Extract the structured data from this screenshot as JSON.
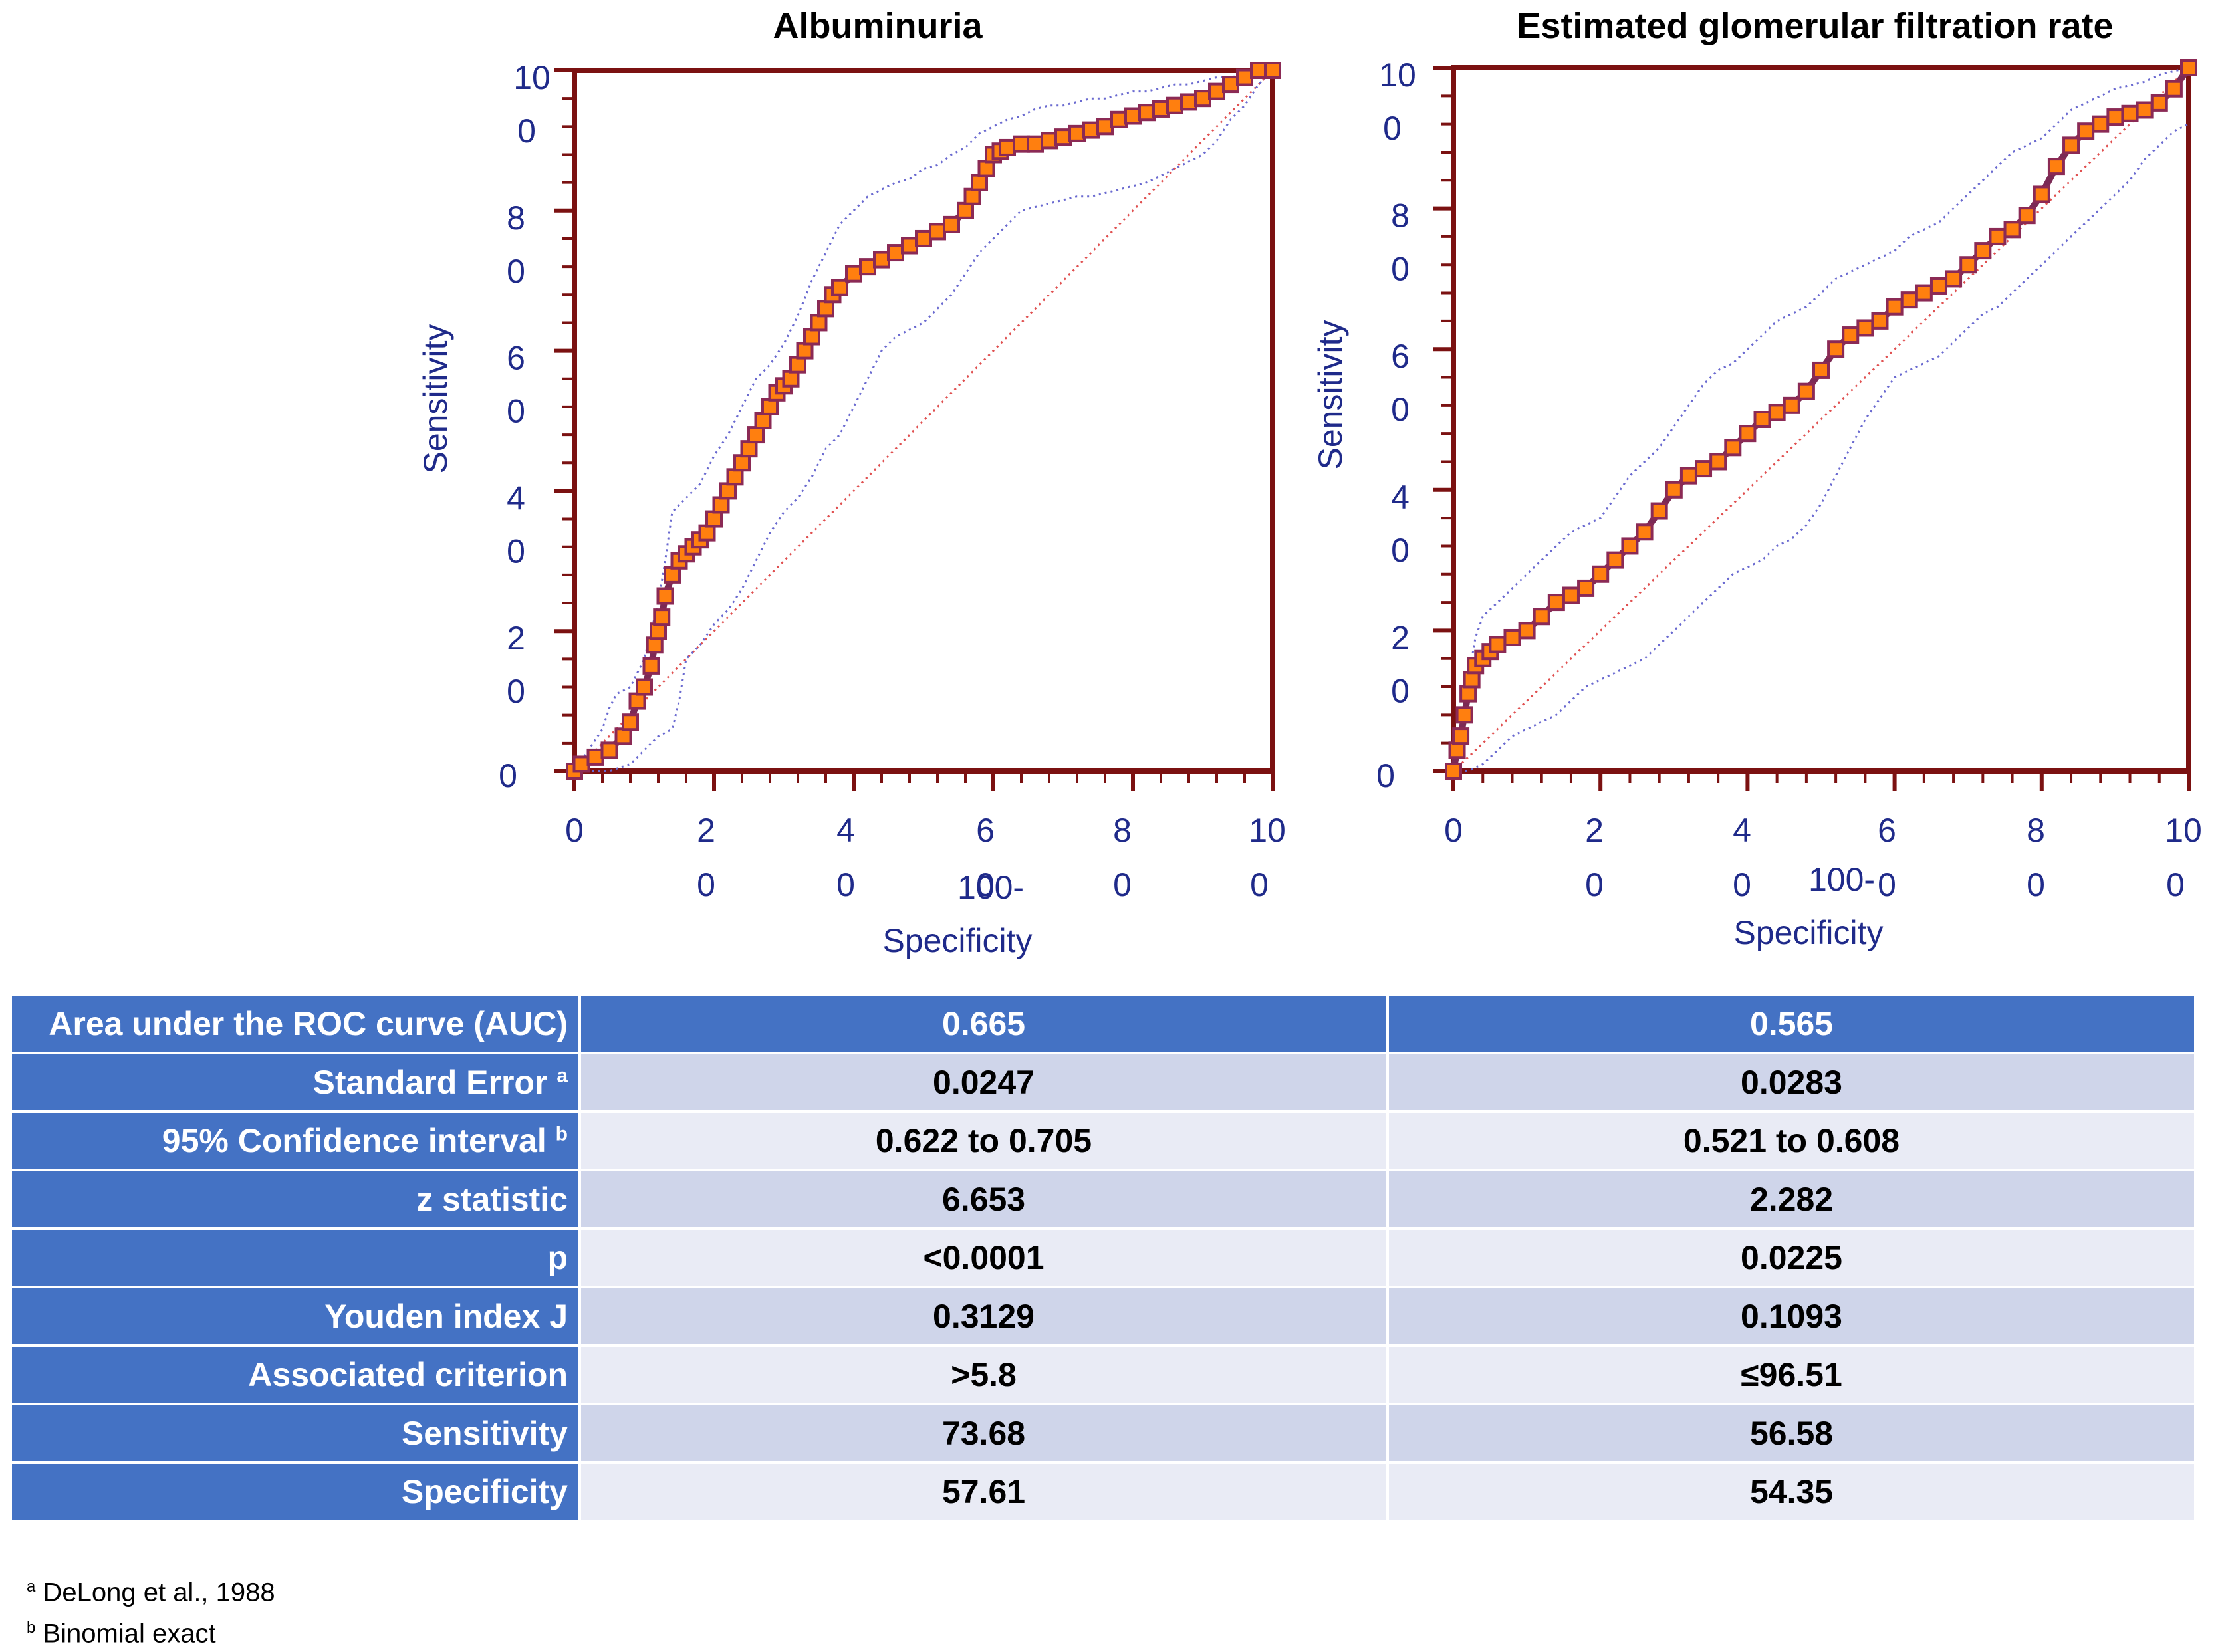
{
  "chart_data": [
    {
      "type": "line",
      "title": "Albuminuria",
      "xlabel": "100-\nSpecificity",
      "ylabel": "Sensitivity",
      "xlim": [
        0,
        100
      ],
      "ylim": [
        0,
        100
      ],
      "xticks": [
        "0",
        "20",
        "40",
        "60",
        "80",
        "100"
      ],
      "yticks": [
        "0",
        "20",
        "40",
        "60",
        "80",
        "100"
      ],
      "series": [
        {
          "x": [
            0,
            1,
            3,
            5,
            7,
            8,
            9,
            10,
            11,
            11.5,
            12,
            12.5,
            13,
            14,
            15,
            16,
            17,
            18,
            19,
            20,
            21,
            22,
            23,
            24,
            25,
            26,
            27,
            28,
            29,
            30,
            31,
            32,
            33,
            34,
            35,
            36,
            37,
            38,
            40,
            42,
            44,
            46,
            48,
            50,
            52,
            54,
            56,
            57,
            58,
            59,
            60,
            61,
            62,
            64,
            66,
            68,
            70,
            72,
            74,
            76,
            78,
            80,
            82,
            84,
            86,
            88,
            90,
            92,
            94,
            96,
            98,
            100
          ],
          "y": [
            0,
            1,
            2,
            3,
            5,
            7,
            10,
            12,
            15,
            18,
            20,
            22,
            25,
            28,
            30,
            31,
            32,
            33,
            34,
            36,
            38,
            40,
            42,
            44,
            46,
            48,
            50,
            52,
            54,
            55,
            56,
            58,
            60,
            62,
            64,
            66,
            68,
            69,
            71,
            72,
            73,
            74,
            75,
            76,
            77,
            78,
            80,
            82,
            84,
            86,
            88,
            88.5,
            89,
            89.5,
            89.5,
            90,
            90.5,
            91,
            91.5,
            92,
            93,
            93.5,
            94,
            94.5,
            95,
            95.5,
            96,
            97,
            98,
            99,
            100,
            100
          ]
        },
        {
          "x": [
            0,
            2,
            4,
            5,
            6,
            8,
            10,
            12,
            13,
            14,
            16,
            18,
            20,
            22,
            24,
            26,
            28,
            30,
            32,
            34,
            36,
            38,
            40,
            42,
            44,
            46,
            48,
            50,
            52,
            54,
            56,
            58,
            60,
            62,
            64,
            66,
            68,
            70,
            72,
            74,
            76,
            78,
            80,
            82,
            84,
            86,
            88,
            90,
            92,
            94,
            96,
            98,
            100
          ],
          "y": [
            0,
            3,
            6,
            9,
            11,
            12,
            16,
            24,
            30,
            37,
            39,
            41,
            45,
            48,
            52,
            56,
            58,
            61,
            65,
            70,
            74,
            78,
            80,
            82,
            83,
            84,
            84.5,
            86,
            86.5,
            88,
            89,
            91,
            92,
            93,
            93.5,
            94.5,
            95,
            95,
            95.5,
            96,
            96,
            96.5,
            97,
            97,
            97.5,
            98,
            98,
            98.5,
            99,
            99,
            99.5,
            100,
            100
          ]
        },
        {
          "x": [
            0,
            5,
            8,
            10,
            12,
            14,
            15,
            16,
            18,
            20,
            22,
            24,
            26,
            28,
            30,
            32,
            34,
            36,
            38,
            40,
            42,
            44,
            46,
            48,
            50,
            52,
            54,
            56,
            58,
            60,
            62,
            64,
            66,
            68,
            70,
            72,
            74,
            76,
            78,
            80,
            82,
            84,
            86,
            88,
            90,
            92,
            94,
            96,
            98,
            100
          ],
          "y": [
            0,
            0,
            1,
            3,
            5,
            6,
            10,
            16,
            18,
            21,
            23,
            26,
            30,
            34,
            37,
            39,
            42,
            46,
            48,
            52,
            56,
            60,
            62,
            63,
            64,
            66,
            68,
            71,
            74,
            76,
            78,
            80,
            80.5,
            81,
            81.5,
            82,
            82,
            82.5,
            83,
            83.5,
            84,
            85,
            86,
            87,
            88,
            90,
            93,
            95,
            98,
            100
          ]
        },
        {
          "x": [
            0,
            100
          ],
          "y": [
            0,
            100
          ]
        }
      ]
    },
    {
      "type": "line",
      "title": "Estimated glomerular filtration rate",
      "xlabel": "100-\nSpecificity",
      "ylabel": "Sensitivity",
      "xlim": [
        0,
        100
      ],
      "ylim": [
        0,
        100
      ],
      "xticks": [
        "0",
        "20",
        "40",
        "60",
        "80",
        "100"
      ],
      "yticks": [
        "0",
        "20",
        "40",
        "60",
        "80",
        "100"
      ],
      "series": [
        {
          "x": [
            0,
            0.5,
            1,
            1.5,
            2,
            2.5,
            3,
            4,
            5,
            6,
            8,
            10,
            12,
            14,
            16,
            18,
            20,
            22,
            24,
            26,
            28,
            30,
            32,
            34,
            36,
            38,
            40,
            42,
            44,
            46,
            48,
            50,
            52,
            54,
            56,
            58,
            60,
            62,
            64,
            66,
            68,
            70,
            72,
            74,
            76,
            78,
            80,
            82,
            84,
            86,
            88,
            90,
            92,
            94,
            96,
            98,
            100
          ],
          "y": [
            0,
            3,
            5,
            8,
            11,
            13,
            15,
            16,
            17,
            18,
            19,
            20,
            22,
            24,
            25,
            26,
            28,
            30,
            32,
            34,
            37,
            40,
            42,
            43,
            44,
            46,
            48,
            50,
            51,
            52,
            54,
            57,
            60,
            62,
            63,
            64,
            66,
            67,
            68,
            69,
            70,
            72,
            74,
            76,
            77,
            79,
            82,
            86,
            89,
            91,
            92,
            93,
            93.5,
            94,
            95,
            97,
            100
          ]
        },
        {
          "x": [
            0,
            1,
            2,
            3,
            4,
            6,
            8,
            10,
            12,
            14,
            16,
            18,
            20,
            22,
            24,
            26,
            28,
            30,
            32,
            34,
            36,
            38,
            40,
            42,
            44,
            46,
            48,
            50,
            52,
            54,
            56,
            58,
            60,
            62,
            64,
            66,
            68,
            70,
            72,
            74,
            76,
            78,
            80,
            82,
            84,
            86,
            88,
            90,
            92,
            94,
            96,
            98,
            100
          ],
          "y": [
            0,
            6,
            13,
            19,
            22,
            24,
            26,
            28,
            30,
            32,
            34,
            35,
            36,
            39,
            42,
            44,
            46,
            49,
            52,
            55,
            57,
            58,
            60,
            62,
            64,
            65,
            66,
            68,
            70,
            71,
            72,
            73,
            74,
            76,
            77,
            78,
            80,
            82,
            84,
            86,
            88,
            89,
            90,
            92,
            94,
            95,
            96,
            97,
            97.5,
            98,
            99,
            99.5,
            100
          ]
        },
        {
          "x": [
            0,
            2,
            4,
            6,
            8,
            10,
            12,
            14,
            16,
            18,
            20,
            22,
            24,
            26,
            28,
            30,
            32,
            34,
            36,
            38,
            40,
            42,
            44,
            46,
            48,
            50,
            52,
            54,
            56,
            58,
            60,
            62,
            64,
            66,
            68,
            70,
            72,
            74,
            76,
            78,
            80,
            82,
            84,
            86,
            88,
            90,
            92,
            94,
            96,
            98,
            100
          ],
          "y": [
            0,
            0,
            1,
            3,
            5,
            6,
            7,
            8,
            10,
            12,
            13,
            14,
            15,
            16,
            18,
            20,
            22,
            24,
            26,
            28,
            29,
            30,
            32,
            33,
            35,
            38,
            42,
            46,
            50,
            53,
            56,
            57,
            58,
            59,
            61,
            63,
            65,
            66,
            68,
            70,
            72,
            74,
            76,
            78,
            80,
            82,
            84,
            87,
            89,
            91,
            92
          ]
        },
        {
          "x": [
            0,
            100
          ],
          "y": [
            0,
            100
          ]
        }
      ]
    }
  ],
  "table": {
    "rows": [
      {
        "label": "Area under the ROC curve (AUC)",
        "sup": "",
        "v1": "0.665",
        "v2": "0.565"
      },
      {
        "label": "Standard Error",
        "sup": "a",
        "v1": "0.0247",
        "v2": "0.0283"
      },
      {
        "label": "95% Confidence interval",
        "sup": "b",
        "v1": "0.622 to 0.705",
        "v2": "0.521 to 0.608"
      },
      {
        "label": "z statistic",
        "sup": "",
        "v1": "6.653",
        "v2": "2.282"
      },
      {
        "label": "p",
        "sup": "",
        "v1": "<0.0001",
        "v2": "0.0225"
      },
      {
        "label": "Youden index  J",
        "sup": "",
        "v1": "0.3129",
        "v2": "0.1093"
      },
      {
        "label": "Associated criterion",
        "sup": "",
        "v1": ">5.8",
        "v2": "≤96.51"
      },
      {
        "label": "Sensitivity",
        "sup": "",
        "v1": "73.68",
        "v2": "56.58"
      },
      {
        "label": "Specificity",
        "sup": "",
        "v1": "57.61",
        "v2": "54.35"
      }
    ]
  },
  "footnotes": [
    {
      "mark": "a",
      "text": "DeLong et al., 1988"
    },
    {
      "mark": "b",
      "text": "Binomial exact"
    }
  ],
  "colors": {
    "axis": "#7b1111",
    "roc_line": "#7b2a55",
    "marker_fill": "#ff7f0f",
    "marker_edge": "#8b2a55",
    "ci_line": "#6a6ad0",
    "diagonal": "#e05050",
    "tick_text": "#1f2a8a",
    "header_blue": "#4472c4"
  }
}
